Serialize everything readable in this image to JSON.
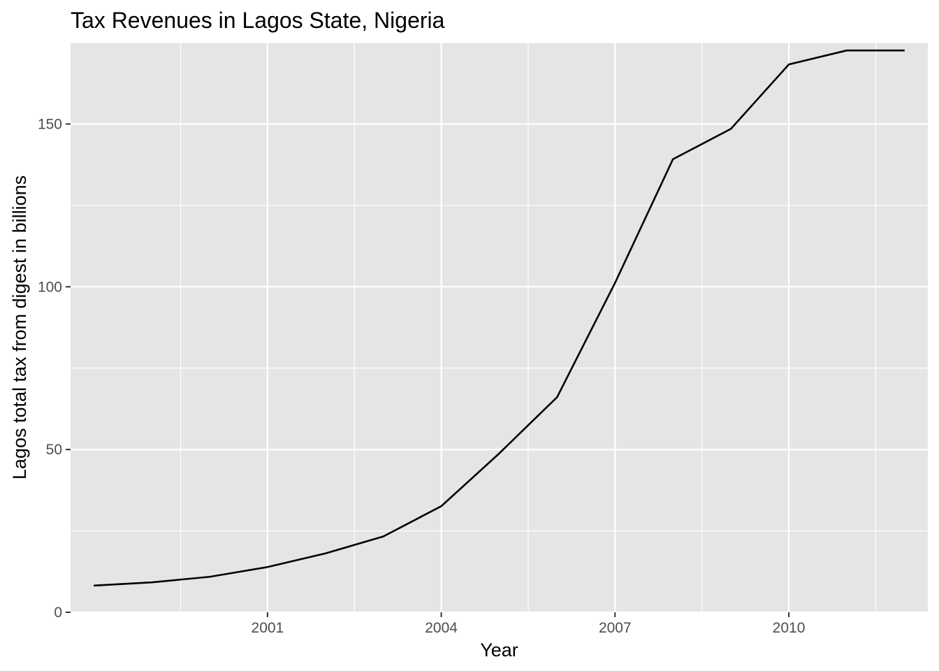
{
  "chart_data": {
    "type": "line",
    "title": "Tax Revenues in Lagos State, Nigeria",
    "xlabel": "Year",
    "ylabel": "Lagos total tax from digest in billions",
    "xlim": [
      1997.6,
      2012.4
    ],
    "ylim": [
      0,
      175
    ],
    "x_ticks": [
      2001,
      2004,
      2007,
      2010
    ],
    "y_ticks": [
      0,
      50,
      100,
      150
    ],
    "grid": true,
    "legend": "none",
    "colors": {
      "panel": "#e5e5e5",
      "grid": "#ffffff",
      "line": "#000000",
      "tick": "#4d4d4d"
    },
    "series": [
      {
        "x": [
          1998,
          1999,
          2000,
          2001,
          2002,
          2003,
          2004,
          2005,
          2006,
          2007,
          2008,
          2009,
          2010,
          2011,
          2012
        ],
        "values": [
          8.2,
          9.2,
          10.9,
          13.9,
          18.1,
          23.3,
          32.6,
          48.8,
          66.1,
          101.2,
          139.2,
          148.5,
          168.3,
          172.6,
          172.6
        ]
      }
    ]
  }
}
